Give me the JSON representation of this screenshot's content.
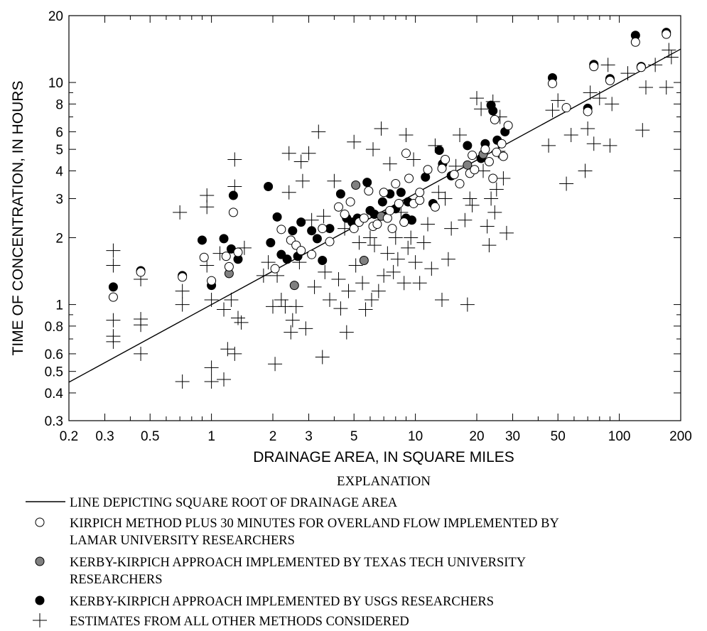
{
  "chart_data": {
    "type": "scatter",
    "title": "",
    "xlabel": "DRAINAGE AREA, IN SQUARE MILES",
    "ylabel": "TIME OF CONCENTRATION, IN HOURS",
    "x_scale": "log",
    "y_scale": "log",
    "xlim": [
      0.2,
      200
    ],
    "ylim": [
      0.3,
      20
    ],
    "x_tick_labels": [
      "0.2",
      "0.3",
      "0.5",
      "1",
      "2",
      "3",
      "5",
      "10",
      "20",
      "30",
      "50",
      "100",
      "200"
    ],
    "y_tick_labels": [
      "0.3",
      "0.4",
      "0.5",
      "0.6",
      "0.8",
      "1",
      "2",
      "3",
      "4",
      "5",
      "6",
      "8",
      "10",
      "20"
    ],
    "grid": false,
    "legend_position": "below plot",
    "legend_title": "EXPLANATION",
    "legend": [
      {
        "symbol": "line",
        "lines": [
          "LINE DEPICTING SQUARE ROOT OF DRAINAGE AREA"
        ]
      },
      {
        "symbol": "open-circle",
        "lines": [
          "KIRPICH METHOD PLUS 30 MINUTES FOR OVERLAND FLOW IMPLEMENTED BY",
          "LAMAR UNIVERSITY RESEARCHERS"
        ]
      },
      {
        "symbol": "gray-circle",
        "lines": [
          "KERBY-KIRPICH APPROACH IMPLEMENTED BY TEXAS TECH UNIVERSITY",
          "RESEARCHERS"
        ]
      },
      {
        "symbol": "black-circle",
        "lines": [
          "KERBY-KIRPICH APPROACH IMPLEMENTED BY USGS RESEARCHERS"
        ]
      },
      {
        "symbol": "plus",
        "lines": [
          "ESTIMATES FROM ALL OTHER METHODS CONSIDERED"
        ]
      }
    ],
    "line": {
      "x": [
        0.2,
        200
      ],
      "y": [
        0.447,
        14.14
      ]
    },
    "series": [
      {
        "marker": "open-circle",
        "points": [
          [
            0.33,
            1.08
          ],
          [
            0.45,
            1.4
          ],
          [
            0.72,
            1.33
          ],
          [
            0.92,
            1.63
          ],
          [
            1.0,
            1.28
          ],
          [
            1.18,
            1.65
          ],
          [
            1.22,
            1.48
          ],
          [
            1.28,
            2.6
          ],
          [
            1.35,
            1.72
          ],
          [
            2.05,
            1.45
          ],
          [
            2.2,
            2.18
          ],
          [
            2.45,
            1.95
          ],
          [
            2.6,
            1.85
          ],
          [
            2.75,
            1.75
          ],
          [
            3.1,
            1.68
          ],
          [
            3.5,
            2.2
          ],
          [
            3.8,
            1.92
          ],
          [
            4.2,
            2.75
          ],
          [
            4.5,
            2.55
          ],
          [
            4.8,
            2.9
          ],
          [
            5.0,
            2.2
          ],
          [
            5.3,
            2.35
          ],
          [
            5.6,
            2.45
          ],
          [
            5.9,
            3.25
          ],
          [
            6.2,
            2.25
          ],
          [
            6.5,
            2.3
          ],
          [
            7.0,
            3.2
          ],
          [
            7.3,
            2.45
          ],
          [
            7.7,
            2.2
          ],
          [
            8.0,
            3.5
          ],
          [
            8.3,
            2.85
          ],
          [
            8.8,
            2.35
          ],
          [
            9.3,
            3.7
          ],
          [
            9.0,
            4.8
          ],
          [
            9.8,
            2.85
          ],
          [
            10.5,
            2.95
          ],
          [
            11.5,
            4.05
          ],
          [
            12.5,
            2.75
          ],
          [
            13.5,
            4.1
          ],
          [
            14.0,
            4.5
          ],
          [
            15.5,
            3.85
          ],
          [
            16.5,
            3.5
          ],
          [
            18.5,
            3.9
          ],
          [
            19.0,
            4.7
          ],
          [
            19.5,
            4.05
          ],
          [
            22.0,
            5.0
          ],
          [
            23.0,
            4.4
          ],
          [
            24.0,
            3.7
          ],
          [
            24.5,
            6.8
          ],
          [
            25.0,
            4.85
          ],
          [
            26.5,
            5.3
          ],
          [
            27.0,
            4.65
          ],
          [
            28.5,
            6.4
          ],
          [
            47.0,
            9.9
          ],
          [
            55.0,
            7.7
          ],
          [
            70.0,
            7.4
          ],
          [
            75.0,
            11.8
          ],
          [
            90.0,
            10.2
          ],
          [
            120.0,
            15.2
          ],
          [
            128.0,
            11.7
          ],
          [
            170.0,
            16.5
          ],
          [
            10.5,
            3.2
          ],
          [
            7.5,
            2.65
          ]
        ]
      },
      {
        "marker": "gray-circle",
        "points": [
          [
            1.22,
            1.38
          ],
          [
            2.55,
            1.22
          ],
          [
            5.1,
            3.45
          ],
          [
            5.6,
            1.58
          ],
          [
            18.0,
            4.25
          ],
          [
            21.5,
            4.75
          ],
          [
            6.8,
            2.5
          ]
        ]
      },
      {
        "marker": "black-circle",
        "points": [
          [
            0.33,
            1.2
          ],
          [
            0.45,
            1.42
          ],
          [
            0.72,
            1.35
          ],
          [
            0.9,
            1.95
          ],
          [
            1.0,
            1.22
          ],
          [
            1.15,
            1.98
          ],
          [
            1.25,
            1.78
          ],
          [
            1.28,
            3.1
          ],
          [
            1.35,
            1.6
          ],
          [
            1.9,
            3.4
          ],
          [
            1.95,
            1.9
          ],
          [
            2.1,
            2.48
          ],
          [
            2.2,
            1.68
          ],
          [
            2.35,
            1.6
          ],
          [
            2.5,
            2.15
          ],
          [
            2.65,
            1.65
          ],
          [
            2.75,
            2.35
          ],
          [
            3.1,
            2.15
          ],
          [
            3.3,
            1.98
          ],
          [
            3.5,
            1.58
          ],
          [
            3.8,
            2.2
          ],
          [
            4.3,
            3.15
          ],
          [
            4.6,
            2.45
          ],
          [
            4.9,
            2.35
          ],
          [
            5.2,
            2.45
          ],
          [
            5.8,
            3.55
          ],
          [
            6.3,
            2.55
          ],
          [
            6.9,
            2.9
          ],
          [
            7.1,
            2.5
          ],
          [
            7.5,
            3.15
          ],
          [
            8.0,
            2.7
          ],
          [
            8.5,
            3.2
          ],
          [
            9.0,
            2.45
          ],
          [
            9.6,
            2.4
          ],
          [
            11.2,
            3.75
          ],
          [
            12.2,
            2.85
          ],
          [
            13.1,
            4.95
          ],
          [
            13.6,
            4.3
          ],
          [
            15.0,
            3.8
          ],
          [
            18.0,
            5.2
          ],
          [
            21.0,
            4.55
          ],
          [
            22.0,
            5.3
          ],
          [
            23.5,
            7.9
          ],
          [
            24.0,
            7.45
          ],
          [
            25.2,
            5.5
          ],
          [
            27.5,
            6.0
          ],
          [
            47.0,
            10.5
          ],
          [
            70.0,
            7.65
          ],
          [
            75.0,
            12.05
          ],
          [
            90.0,
            10.4
          ],
          [
            120.0,
            16.3
          ],
          [
            128.0,
            11.8
          ],
          [
            170.0,
            16.8
          ],
          [
            9.2,
            2.9
          ],
          [
            6.0,
            2.65
          ]
        ]
      },
      {
        "marker": "plus",
        "points": [
          [
            0.33,
            1.75
          ],
          [
            0.33,
            1.5
          ],
          [
            0.33,
            0.85
          ],
          [
            0.33,
            0.72
          ],
          [
            0.33,
            0.68
          ],
          [
            0.45,
            0.86
          ],
          [
            0.45,
            0.81
          ],
          [
            0.45,
            0.6
          ],
          [
            0.45,
            1.3
          ],
          [
            0.7,
            2.6
          ],
          [
            0.72,
            1.15
          ],
          [
            0.72,
            1.0
          ],
          [
            0.72,
            0.45
          ],
          [
            0.95,
            3.1
          ],
          [
            0.95,
            2.75
          ],
          [
            0.95,
            1.5
          ],
          [
            1.0,
            1.05
          ],
          [
            1.0,
            0.52
          ],
          [
            1.0,
            0.45
          ],
          [
            1.1,
            1.7
          ],
          [
            1.15,
            0.95
          ],
          [
            1.15,
            0.46
          ],
          [
            1.2,
            0.63
          ],
          [
            1.25,
            1.05
          ],
          [
            1.3,
            4.5
          ],
          [
            1.3,
            3.4
          ],
          [
            1.3,
            0.6
          ],
          [
            1.35,
            0.87
          ],
          [
            1.4,
            0.83
          ],
          [
            1.45,
            1.8
          ],
          [
            1.8,
            1.35
          ],
          [
            1.9,
            1.55
          ],
          [
            2.0,
            0.98
          ],
          [
            2.05,
            0.54
          ],
          [
            2.1,
            1.35
          ],
          [
            2.2,
            1.05
          ],
          [
            2.3,
            0.98
          ],
          [
            2.4,
            4.8
          ],
          [
            2.4,
            3.2
          ],
          [
            2.45,
            0.75
          ],
          [
            2.5,
            0.85
          ],
          [
            2.6,
            0.98
          ],
          [
            2.7,
            1.55
          ],
          [
            2.75,
            4.4
          ],
          [
            2.8,
            3.6
          ],
          [
            2.9,
            0.78
          ],
          [
            3.0,
            4.8
          ],
          [
            3.1,
            2.4
          ],
          [
            3.2,
            1.2
          ],
          [
            3.35,
            6.0
          ],
          [
            3.5,
            0.58
          ],
          [
            3.55,
            2.5
          ],
          [
            3.6,
            1.4
          ],
          [
            3.8,
            1.05
          ],
          [
            4.0,
            3.6
          ],
          [
            4.2,
            1.3
          ],
          [
            4.3,
            0.96
          ],
          [
            4.5,
            2.2
          ],
          [
            4.6,
            0.75
          ],
          [
            4.7,
            1.15
          ],
          [
            5.0,
            5.4
          ],
          [
            5.1,
            1.5
          ],
          [
            5.3,
            1.9
          ],
          [
            5.5,
            1.25
          ],
          [
            5.7,
            0.95
          ],
          [
            6.0,
            2.0
          ],
          [
            6.1,
            1.05
          ],
          [
            6.2,
            5.0
          ],
          [
            6.3,
            1.85
          ],
          [
            6.6,
            1.15
          ],
          [
            6.8,
            6.2
          ],
          [
            7.0,
            1.35
          ],
          [
            7.3,
            1.7
          ],
          [
            7.5,
            4.3
          ],
          [
            7.8,
            1.4
          ],
          [
            8.0,
            2.0
          ],
          [
            8.2,
            1.6
          ],
          [
            8.5,
            2.6
          ],
          [
            8.8,
            1.25
          ],
          [
            9.0,
            5.8
          ],
          [
            9.2,
            1.8
          ],
          [
            9.5,
            2.0
          ],
          [
            9.8,
            4.5
          ],
          [
            10.0,
            1.55
          ],
          [
            10.5,
            1.25
          ],
          [
            11.0,
            1.9
          ],
          [
            11.5,
            2.3
          ],
          [
            12.0,
            1.45
          ],
          [
            12.5,
            5.2
          ],
          [
            13.0,
            3.2
          ],
          [
            13.5,
            1.05
          ],
          [
            14.0,
            3.0
          ],
          [
            14.5,
            1.6
          ],
          [
            15.0,
            2.2
          ],
          [
            15.8,
            4.2
          ],
          [
            16.5,
            5.8
          ],
          [
            17.5,
            2.4
          ],
          [
            18.0,
            1.0
          ],
          [
            18.5,
            3.0
          ],
          [
            19.0,
            2.8
          ],
          [
            20.0,
            8.5
          ],
          [
            21.0,
            7.6
          ],
          [
            21.5,
            4.0
          ],
          [
            22.5,
            2.25
          ],
          [
            23.0,
            1.85
          ],
          [
            23.5,
            3.0
          ],
          [
            24.0,
            8.2
          ],
          [
            24.5,
            2.6
          ],
          [
            25.0,
            3.3
          ],
          [
            25.5,
            4.9
          ],
          [
            26.0,
            7.0
          ],
          [
            27.0,
            3.7
          ],
          [
            28.0,
            2.1
          ],
          [
            45.0,
            5.2
          ],
          [
            47.0,
            7.5
          ],
          [
            50.0,
            8.3
          ],
          [
            55.0,
            3.5
          ],
          [
            58.0,
            5.8
          ],
          [
            68.0,
            4.0
          ],
          [
            70.0,
            6.2
          ],
          [
            72.0,
            9.0
          ],
          [
            75.0,
            5.3
          ],
          [
            80.0,
            8.5
          ],
          [
            88.0,
            12.0
          ],
          [
            90.0,
            5.2
          ],
          [
            92.0,
            8.0
          ],
          [
            110.0,
            11.0
          ],
          [
            130.0,
            6.1
          ],
          [
            135.0,
            9.5
          ],
          [
            150.0,
            12.0
          ],
          [
            170.0,
            9.5
          ],
          [
            175.0,
            14.0
          ],
          [
            180.0,
            13.0
          ]
        ]
      }
    ]
  }
}
